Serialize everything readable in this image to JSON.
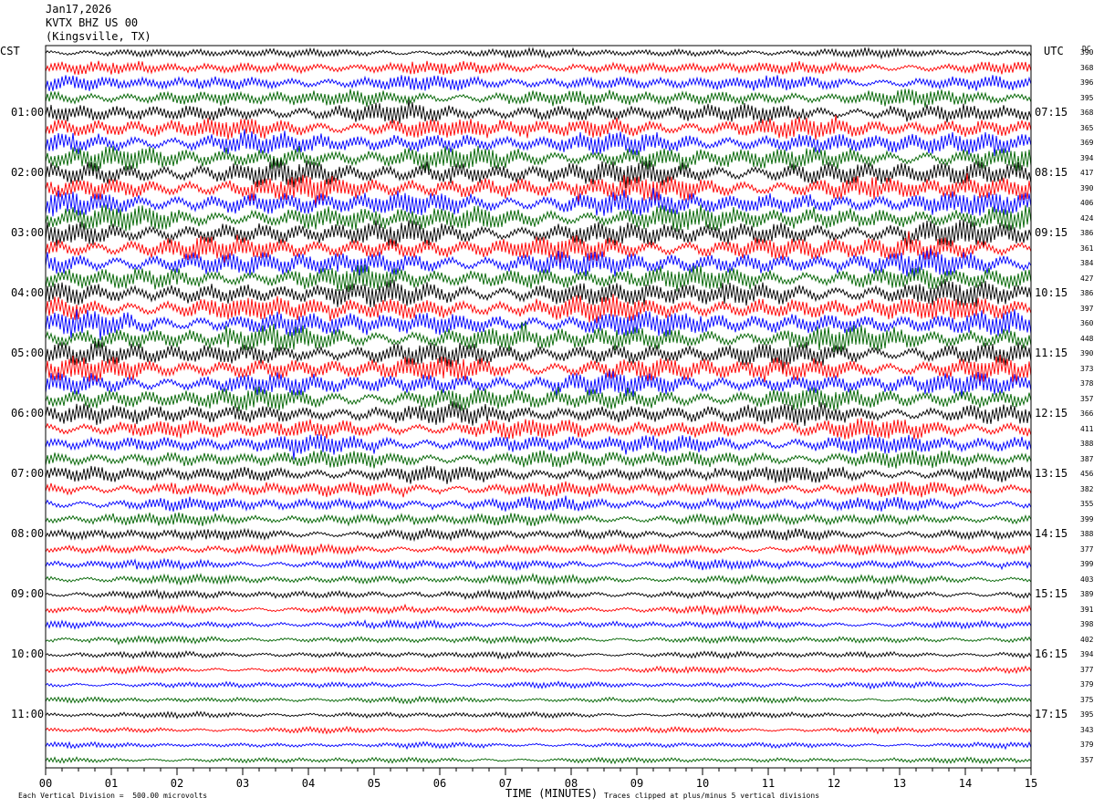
{
  "header": {
    "date": "Jan17,2026",
    "station": "KVTX BHZ US 00",
    "location": "(Kingsville, TX)"
  },
  "axes": {
    "left_label": "CST",
    "right_label": "UTC",
    "dc_label": "DC",
    "x_title": "TIME (MINUTES)",
    "left_ticks": [
      "01:00",
      "02:00",
      "03:00",
      "04:00",
      "05:00",
      "06:00",
      "07:00",
      "08:00",
      "09:00",
      "10:00",
      "11:00"
    ],
    "right_ticks": [
      "07:15",
      "08:15",
      "09:15",
      "10:15",
      "11:15",
      "12:15",
      "13:15",
      "14:15",
      "15:15",
      "16:15",
      "17:15"
    ],
    "x_ticks": [
      "00",
      "01",
      "02",
      "03",
      "04",
      "05",
      "06",
      "07",
      "08",
      "09",
      "10",
      "11",
      "12",
      "13",
      "14",
      "15"
    ]
  },
  "footer": {
    "scale_note": "Each Vertical Division =  500.00 microvolts",
    "clip_note": "Traces clipped at plus/minus 5 vertical divisions"
  },
  "chart_data": {
    "type": "line",
    "title": "",
    "xlabel": "TIME (MINUTES)",
    "xlim": [
      0,
      15
    ],
    "trace_minutes": 15,
    "trace_count": 48,
    "start_cst": "00:15",
    "color_cycle": [
      "#000000",
      "#ff0000",
      "#0000ff",
      "#006400"
    ],
    "dc_offsets": [
      390,
      368,
      396,
      395,
      368,
      365,
      369,
      394,
      417,
      390,
      406,
      424,
      386,
      361,
      384,
      427,
      386,
      397,
      360,
      448,
      390,
      373,
      378,
      357,
      366,
      411,
      388,
      387,
      456,
      382,
      355,
      399,
      388,
      377,
      399,
      403,
      389,
      391,
      398,
      402,
      394,
      377,
      379,
      375,
      395,
      343,
      379,
      357
    ],
    "amplitude_profile": [
      0.35,
      0.5,
      0.6,
      0.65,
      0.75,
      0.85,
      0.9,
      0.95,
      1.0,
      1.0,
      1.0,
      1.0,
      1.0,
      1.0,
      1.0,
      1.0,
      1.0,
      1.0,
      1.0,
      1.0,
      0.95,
      0.95,
      0.9,
      0.9,
      0.85,
      0.8,
      0.75,
      0.7,
      0.65,
      0.6,
      0.55,
      0.5,
      0.45,
      0.42,
      0.4,
      0.38,
      0.35,
      0.33,
      0.3,
      0.28,
      0.27,
      0.26,
      0.25,
      0.24,
      0.24,
      0.23,
      0.22,
      0.22
    ]
  }
}
